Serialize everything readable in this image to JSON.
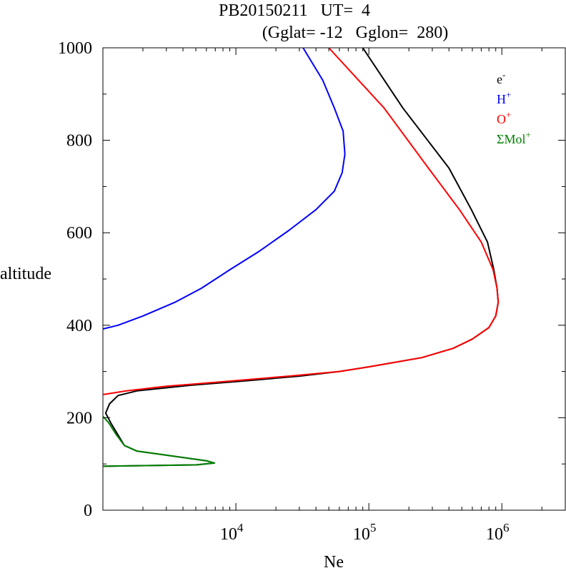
{
  "chart_data": {
    "type": "line",
    "title": "PB20150211   UT=  4",
    "subtitle": "(Gglat= -12   Gglon=  280)",
    "xlabel": "Ne",
    "ylabel": "altitude",
    "x_scale": "log",
    "xlim": [
      1000,
      3000000
    ],
    "ylim": [
      0,
      1000
    ],
    "y_ticks": [
      {
        "value": 0,
        "label": "0"
      },
      {
        "value": 200,
        "label": "200"
      },
      {
        "value": 400,
        "label": "400"
      },
      {
        "value": 600,
        "label": "600"
      },
      {
        "value": 800,
        "label": "800"
      },
      {
        "value": 1000,
        "label": "1000"
      }
    ],
    "x_ticks": [
      {
        "value": 10000,
        "base": "10",
        "exp": "4"
      },
      {
        "value": 100000,
        "base": "10",
        "exp": "5"
      },
      {
        "value": 1000000,
        "base": "10",
        "exp": "6"
      }
    ],
    "legend_position": "top-right",
    "grid": false,
    "series": [
      {
        "name": "e",
        "name_sup": "-",
        "color": "#000000",
        "points": [
          [
            1000,
            95
          ],
          [
            5000,
            98
          ],
          [
            6900,
            102
          ],
          [
            6000,
            107
          ],
          [
            1800,
            128
          ],
          [
            1450,
            140
          ],
          [
            1150,
            188
          ],
          [
            1050,
            210
          ],
          [
            1120,
            230
          ],
          [
            1300,
            248
          ],
          [
            1800,
            258
          ],
          [
            4500,
            270
          ],
          [
            12000,
            280
          ],
          [
            30000,
            290
          ],
          [
            60000,
            300
          ],
          [
            100000,
            310
          ],
          [
            250000,
            330
          ],
          [
            430000,
            350
          ],
          [
            600000,
            370
          ],
          [
            800000,
            395
          ],
          [
            900000,
            420
          ],
          [
            940000,
            450
          ],
          [
            920000,
            480
          ],
          [
            870000,
            520
          ],
          [
            780000,
            580
          ],
          [
            590000,
            650
          ],
          [
            400000,
            740
          ],
          [
            180000,
            870
          ],
          [
            90000,
            1000
          ]
        ]
      },
      {
        "name": "H",
        "name_sup": "+",
        "color": "#0000ff",
        "points": [
          [
            1000,
            392
          ],
          [
            1300,
            400
          ],
          [
            2000,
            420
          ],
          [
            3500,
            450
          ],
          [
            5500,
            480
          ],
          [
            9000,
            520
          ],
          [
            15000,
            560
          ],
          [
            25000,
            605
          ],
          [
            40000,
            650
          ],
          [
            55000,
            690
          ],
          [
            63000,
            730
          ],
          [
            66000,
            770
          ],
          [
            64000,
            820
          ],
          [
            55000,
            870
          ],
          [
            45000,
            930
          ],
          [
            32000,
            1000
          ]
        ]
      },
      {
        "name": "O",
        "name_sup": "+",
        "color": "#ff0000",
        "points": [
          [
            1000,
            250
          ],
          [
            1500,
            258
          ],
          [
            3000,
            268
          ],
          [
            8000,
            278
          ],
          [
            25000,
            290
          ],
          [
            60000,
            300
          ],
          [
            100000,
            310
          ],
          [
            250000,
            330
          ],
          [
            430000,
            350
          ],
          [
            600000,
            370
          ],
          [
            800000,
            395
          ],
          [
            900000,
            420
          ],
          [
            940000,
            450
          ],
          [
            920000,
            480
          ],
          [
            860000,
            520
          ],
          [
            700000,
            580
          ],
          [
            480000,
            650
          ],
          [
            280000,
            740
          ],
          [
            130000,
            870
          ],
          [
            50000,
            1000
          ]
        ]
      },
      {
        "name": "ΣMol",
        "name_sup": "+",
        "color": "#008000",
        "points": [
          [
            1000,
            95
          ],
          [
            5000,
            98
          ],
          [
            6900,
            102
          ],
          [
            6000,
            107
          ],
          [
            1800,
            128
          ],
          [
            1450,
            140
          ],
          [
            1250,
            165
          ],
          [
            1100,
            190
          ],
          [
            1000,
            203
          ]
        ]
      }
    ]
  }
}
